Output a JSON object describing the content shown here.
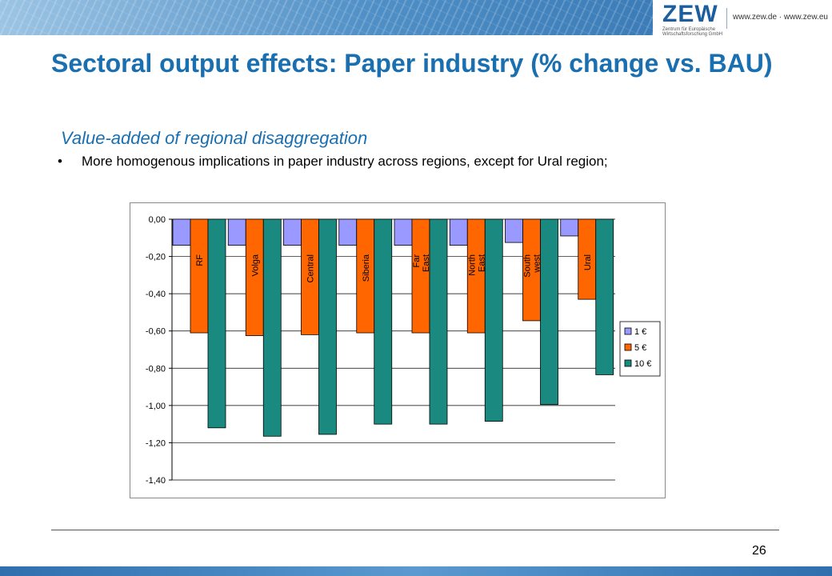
{
  "header": {
    "logo_text": "ZEW",
    "logo_subtext": "Zentrum für Europäische Wirtschaftsforschung GmbH",
    "url": "www.zew.de · www.zew.eu"
  },
  "slide": {
    "title": "Sectoral output effects: Paper industry (% change vs. BAU)",
    "subtitle": "Value-added of regional disaggregation",
    "bullet": "•",
    "bullet_text": "More homogenous implications in paper industry across regions, except for Ural region;",
    "page_number": "26"
  },
  "colors": {
    "accent": "#1a6fb0",
    "series_1": "#9999ff",
    "series_5": "#ff6600",
    "series_10": "#1a8a80"
  },
  "chart_data": {
    "type": "bar",
    "categories": [
      "RF",
      "Volga",
      "Central",
      "Siberia",
      "Far\nEast",
      "North\nEast",
      "South\nwest",
      "Ural"
    ],
    "series": [
      {
        "name": "1 €",
        "values": [
          -0.14,
          -0.14,
          -0.14,
          -0.14,
          -0.14,
          -0.14,
          -0.125,
          -0.09
        ]
      },
      {
        "name": "5 €",
        "values": [
          -0.61,
          -0.625,
          -0.62,
          -0.61,
          -0.61,
          -0.61,
          -0.545,
          -0.43
        ]
      },
      {
        "name": "10 €",
        "values": [
          -1.12,
          -1.165,
          -1.155,
          -1.1,
          -1.1,
          -1.085,
          -0.995,
          -0.835
        ]
      }
    ],
    "y_ticks": [
      "0,00",
      "-0,20",
      "-0,40",
      "-0,60",
      "-0,80",
      "-1,00",
      "-1,20",
      "-1,40"
    ],
    "ylim": [
      -1.4,
      0
    ],
    "grid": true,
    "legend_position": "right",
    "title": "",
    "xlabel": "",
    "ylabel": ""
  }
}
